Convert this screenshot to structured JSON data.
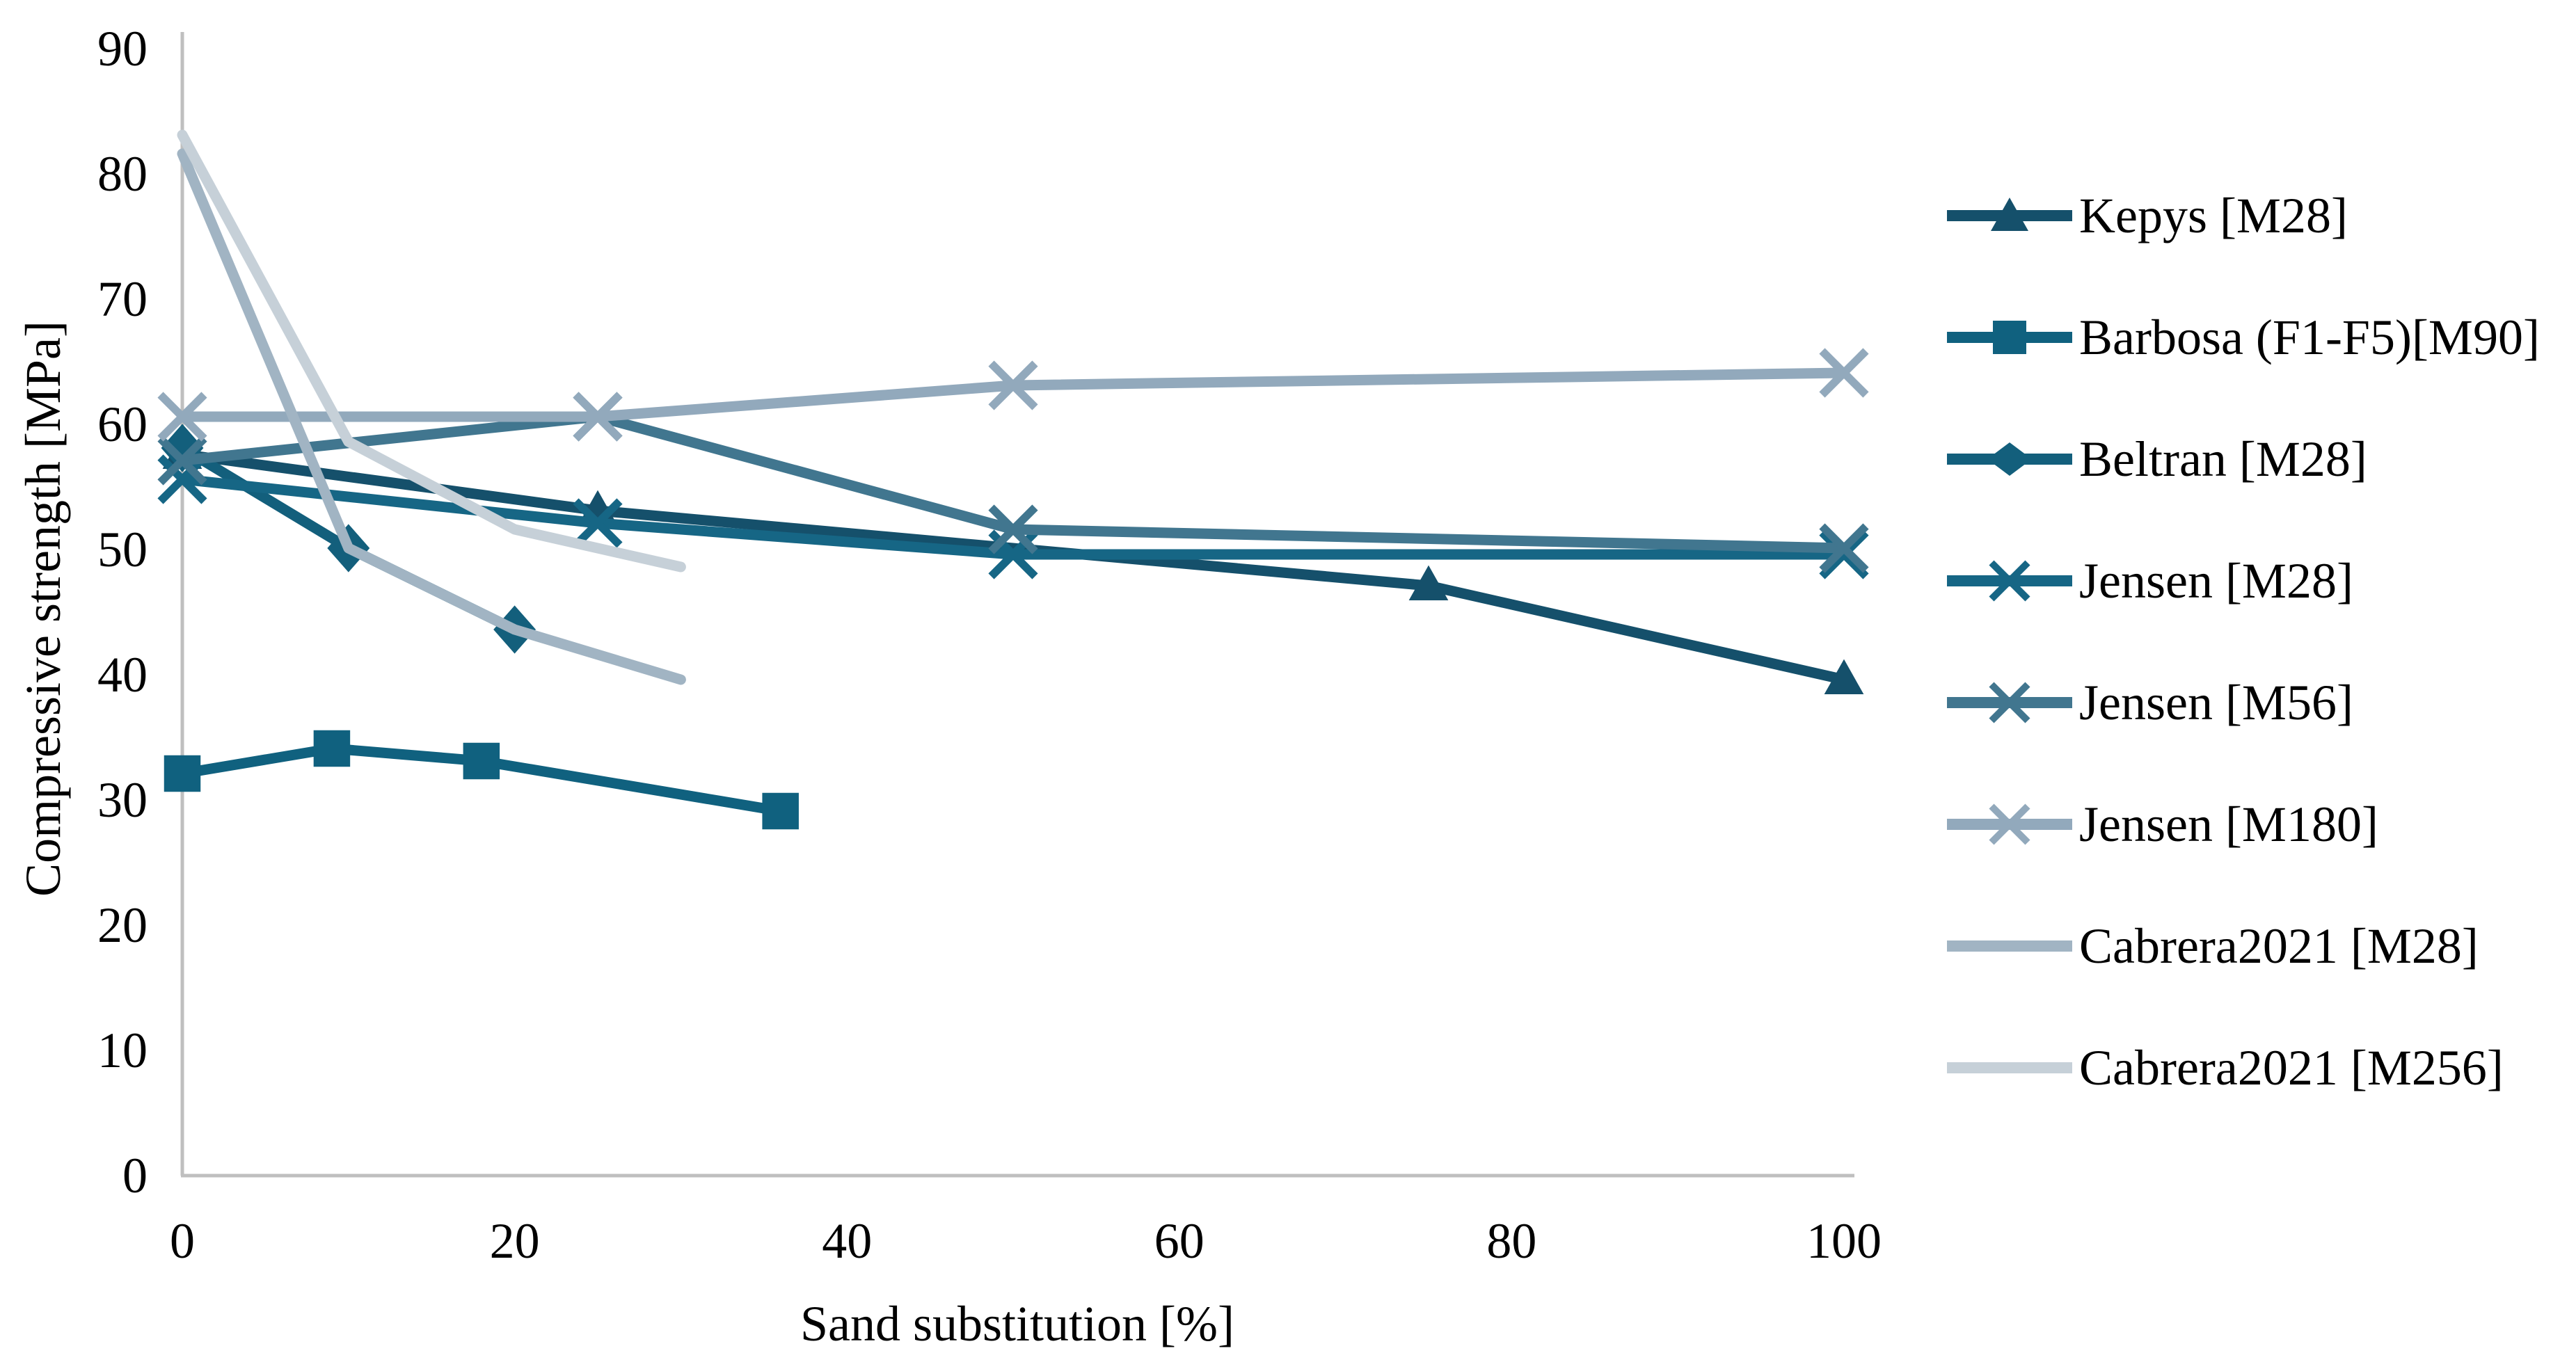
{
  "chart_data": {
    "type": "line",
    "title": "",
    "xlabel": "Sand substitution [%]",
    "ylabel": "Compressive strength [MPa]",
    "xlim": [
      0,
      100
    ],
    "ylim": [
      0,
      90
    ],
    "x_ticks": [
      0,
      20,
      40,
      60,
      80,
      100
    ],
    "y_ticks": [
      0,
      10,
      20,
      30,
      40,
      50,
      60,
      70,
      80,
      90
    ],
    "grid": false,
    "legend_position": "right",
    "axis_color": "#bfbfbf",
    "text_color": "#000000",
    "series": [
      {
        "name": "Kepys [M28]",
        "marker": "triangle",
        "color": "#15506b",
        "x": [
          0,
          25,
          75,
          100
        ],
        "y": [
          57.5,
          53,
          47,
          39.5
        ]
      },
      {
        "name": "Barbosa (F1-F5)[M90]",
        "marker": "square",
        "color": "#10617f",
        "x": [
          0,
          9,
          18,
          36
        ],
        "y": [
          32,
          34,
          33,
          29
        ]
      },
      {
        "name": "Beltran [M28]",
        "marker": "diamond",
        "color": "#135f7c",
        "x": [
          0,
          10,
          20
        ],
        "y": [
          58,
          50,
          43.5
        ]
      },
      {
        "name": "Jensen [M28]",
        "marker": "x",
        "color": "#166685",
        "x": [
          0,
          25,
          50,
          100
        ],
        "y": [
          55.5,
          52,
          49.5,
          49.5
        ]
      },
      {
        "name": "Jensen [M56]",
        "marker": "x",
        "color": "#41768f",
        "x": [
          0,
          25,
          50,
          100
        ],
        "y": [
          57,
          60.5,
          51.5,
          50
        ]
      },
      {
        "name": "Jensen [M180]",
        "marker": "x",
        "color": "#92a9bc",
        "x": [
          0,
          25,
          50,
          100
        ],
        "y": [
          60.5,
          60.5,
          63,
          64
        ]
      },
      {
        "name": "Cabrera2021 [M28]",
        "marker": "none",
        "color": "#a1b4c3",
        "x": [
          0,
          10,
          20,
          30
        ],
        "y": [
          81.5,
          50,
          43.5,
          39.5
        ]
      },
      {
        "name": "Cabrera2021 [M256]",
        "marker": "none",
        "color": "#c6d0d8",
        "x": [
          0,
          10,
          20,
          30
        ],
        "y": [
          83,
          58.5,
          51.5,
          48.5
        ]
      }
    ]
  }
}
